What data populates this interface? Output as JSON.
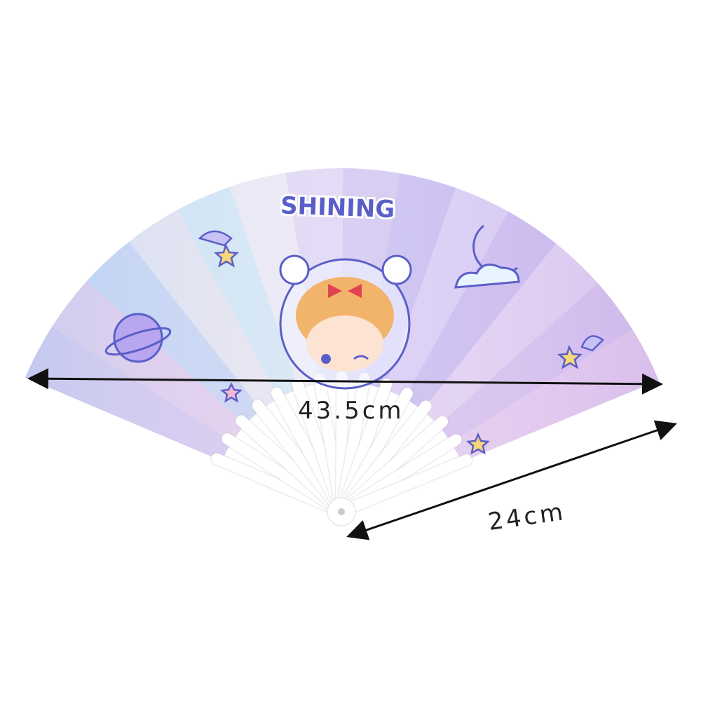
{
  "product": {
    "fan_title": "SHINING",
    "width_label": "43.5cm",
    "height_label": "24cm"
  },
  "colors": {
    "panel_palette": [
      "#d9c4ec",
      "#e6c9ea",
      "#c9d2f2",
      "#e8e2f0",
      "#d3e4f3",
      "#ece7f4",
      "#e0d5f4",
      "#d2c7f0",
      "#c8bdf0",
      "#d9cdf5",
      "#cbbcef",
      "#e4d2f2",
      "#d8c3ee",
      "#e6cdee"
    ],
    "rib": "#ffffff",
    "outline": "#5a5fc8",
    "arrow": "#111111"
  },
  "icons": [
    "planet-icon",
    "shooting-star-icon",
    "moon-cloud-icon",
    "star-icon",
    "astronaut-girl-illustration"
  ]
}
